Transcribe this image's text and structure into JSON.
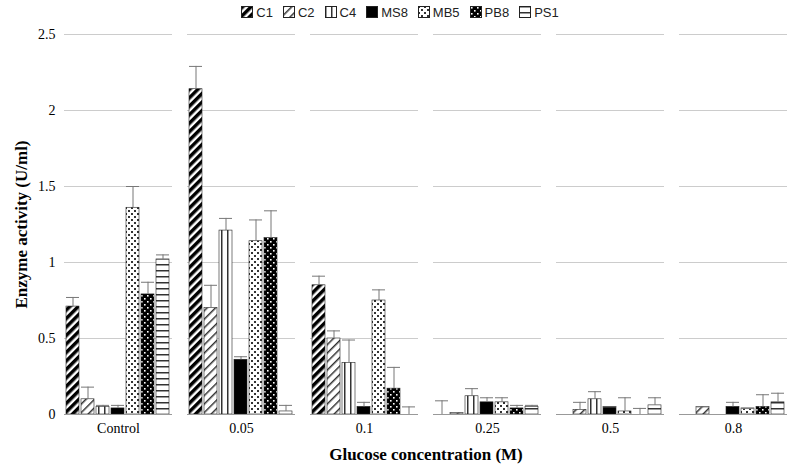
{
  "chart_data": {
    "type": "bar",
    "x_label": "Glucose concentration (M)",
    "y_label": "Enzyme activity (U/ml)",
    "categories": [
      "Control",
      "0.05",
      "0.1",
      "0.25",
      "0.5",
      "0.8"
    ],
    "series": [
      {
        "name": "C1",
        "color": "#000000",
        "values": [
          0.71,
          2.14,
          0.85,
          0.0,
          0.0,
          0.0
        ],
        "errors": [
          0.06,
          0.15,
          0.06,
          0.09,
          0.0,
          0.0
        ]
      },
      {
        "name": "C2",
        "color": "#333333",
        "values": [
          0.1,
          0.7,
          0.5,
          0.01,
          0.03,
          0.05
        ],
        "errors": [
          0.08,
          0.15,
          0.05,
          0.0,
          0.05,
          0.0
        ]
      },
      {
        "name": "C4",
        "color": "#333333",
        "values": [
          0.05,
          1.21,
          0.34,
          0.12,
          0.1,
          0.0
        ],
        "errors": [
          0.01,
          0.08,
          0.15,
          0.05,
          0.05,
          0.0
        ]
      },
      {
        "name": "MS8",
        "color": "#000000",
        "values": [
          0.04,
          0.36,
          0.05,
          0.08,
          0.05,
          0.05
        ],
        "errors": [
          0.02,
          0.02,
          0.03,
          0.03,
          0.0,
          0.03
        ]
      },
      {
        "name": "MB5",
        "color": "#333333",
        "values": [
          1.36,
          1.14,
          0.75,
          0.08,
          0.02,
          0.04
        ],
        "errors": [
          0.14,
          0.14,
          0.07,
          0.03,
          0.09,
          0.0
        ]
      },
      {
        "name": "PB8",
        "color": "#000000",
        "values": [
          0.79,
          1.16,
          0.17,
          0.04,
          0.0,
          0.05
        ],
        "errors": [
          0.08,
          0.18,
          0.14,
          0.02,
          0.04,
          0.08
        ]
      },
      {
        "name": "PS1",
        "color": "#333333",
        "values": [
          1.02,
          0.02,
          0.0,
          0.05,
          0.06,
          0.08
        ],
        "errors": [
          0.03,
          0.04,
          0.05,
          0.01,
          0.05,
          0.06
        ]
      }
    ],
    "ylim": [
      0,
      2.5
    ],
    "yticks": [
      0,
      0.5,
      1,
      1.5,
      2,
      2.5
    ],
    "grid": true,
    "legend": "top"
  }
}
